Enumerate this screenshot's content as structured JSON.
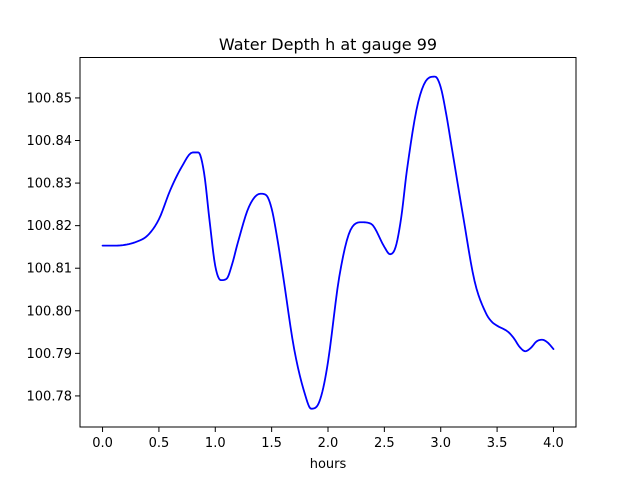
{
  "chart_data": {
    "type": "line",
    "title": "Water Depth h at gauge 99",
    "xlabel": "hours",
    "ylabel": "",
    "xlim": [
      -0.2,
      4.2
    ],
    "ylim": [
      100.7727,
      100.8595
    ],
    "xticks": [
      0.0,
      0.5,
      1.0,
      1.5,
      2.0,
      2.5,
      3.0,
      3.5,
      4.0
    ],
    "xtick_labels": [
      "0.0",
      "0.5",
      "1.0",
      "1.5",
      "2.0",
      "2.5",
      "3.0",
      "3.5",
      "4.0"
    ],
    "yticks": [
      100.78,
      100.79,
      100.8,
      100.81,
      100.82,
      100.83,
      100.84,
      100.85
    ],
    "ytick_labels": [
      "100.78",
      "100.79",
      "100.80",
      "100.81",
      "100.82",
      "100.83",
      "100.84",
      "100.85"
    ],
    "grid": false,
    "series": [
      {
        "color": "#0000ff",
        "x": [
          0.0,
          0.1,
          0.2,
          0.3,
          0.4,
          0.5,
          0.6,
          0.7,
          0.8,
          0.85,
          0.9,
          0.95,
          1.0,
          1.05,
          1.1,
          1.15,
          1.2,
          1.3,
          1.4,
          1.45,
          1.5,
          1.55,
          1.6,
          1.7,
          1.8,
          1.85,
          1.9,
          1.95,
          2.0,
          2.1,
          2.2,
          2.3,
          2.35,
          2.4,
          2.5,
          2.55,
          2.6,
          2.65,
          2.7,
          2.8,
          2.9,
          2.95,
          3.0,
          3.05,
          3.1,
          3.2,
          3.3,
          3.4,
          3.45,
          3.5,
          3.6,
          3.65,
          3.7,
          3.75,
          3.8,
          3.85,
          3.9,
          3.95,
          4.0
        ],
        "y": [
          100.8153,
          100.8153,
          100.8155,
          100.8162,
          100.8177,
          100.8215,
          100.8283,
          100.8337,
          100.8372,
          100.8372,
          100.8325,
          100.821,
          100.8105,
          100.8072,
          100.8075,
          100.811,
          100.816,
          100.8245,
          100.8275,
          100.8272,
          100.824,
          100.817,
          100.8085,
          100.791,
          100.78,
          100.777,
          100.7775,
          100.781,
          100.788,
          100.808,
          100.819,
          100.8208,
          100.8207,
          100.82,
          100.815,
          100.8133,
          100.815,
          100.822,
          100.833,
          100.849,
          100.8548,
          100.855,
          100.8525,
          100.846,
          100.838,
          100.822,
          100.807,
          100.7995,
          100.7975,
          100.7965,
          100.795,
          100.7935,
          100.7915,
          100.7905,
          100.7913,
          100.7928,
          100.7932,
          100.7925,
          100.791
        ]
      }
    ]
  }
}
